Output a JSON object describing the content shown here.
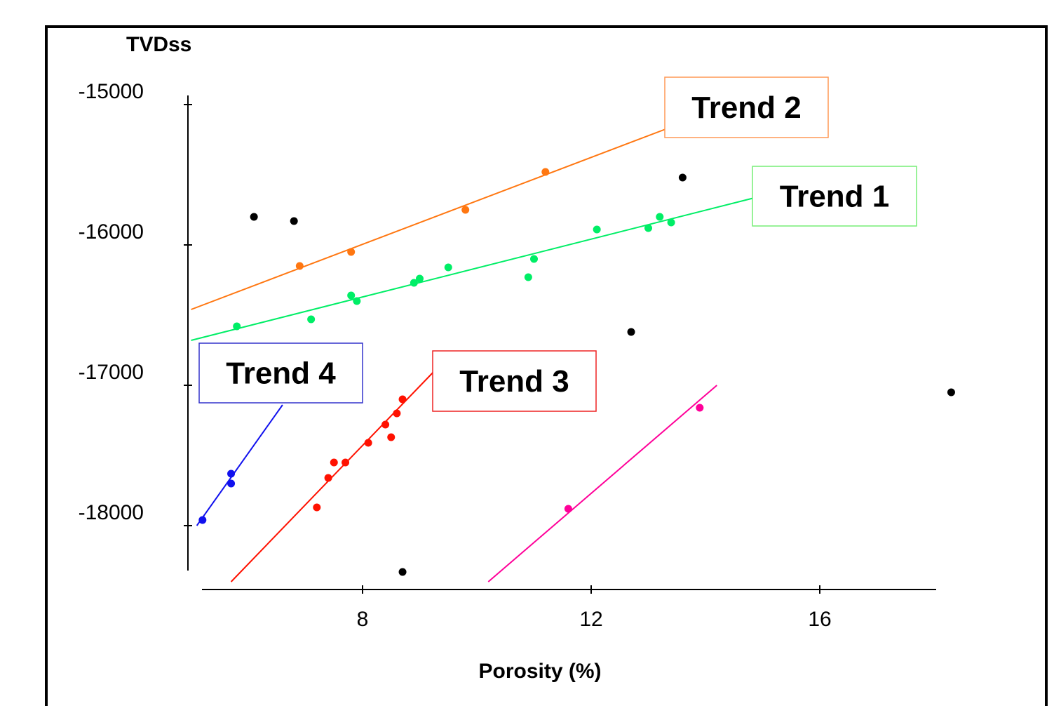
{
  "chart_data": {
    "type": "scatter",
    "xlabel": "Porosity (%)",
    "ylabel": "TVDss",
    "x_ticks": [
      8,
      12,
      16
    ],
    "y_ticks": [
      -15000,
      -16000,
      -17000,
      -18000
    ],
    "xlim": [
      5.0,
      18.5
    ],
    "ylim": [
      -18320,
      -14920
    ],
    "grid": false,
    "series": [
      {
        "name": "Trend 1",
        "color": "#00ee66",
        "box_color": "#77ee77",
        "points": [
          [
            5.8,
            -16580
          ],
          [
            7.1,
            -16530
          ],
          [
            7.8,
            -16360
          ],
          [
            7.9,
            -16400
          ],
          [
            8.9,
            -16270
          ],
          [
            9.0,
            -16240
          ],
          [
            9.5,
            -16160
          ],
          [
            10.9,
            -16230
          ],
          [
            11.0,
            -16100
          ],
          [
            12.1,
            -15890
          ],
          [
            13.0,
            -15880
          ],
          [
            13.2,
            -15800
          ],
          [
            13.4,
            -15840
          ]
        ],
        "line": [
          [
            5.0,
            -16680
          ],
          [
            14.9,
            -15660
          ]
        ]
      },
      {
        "name": "Trend 2",
        "color": "#ff7711",
        "box_color": "#ff9955",
        "points": [
          [
            6.9,
            -16150
          ],
          [
            7.8,
            -16050
          ],
          [
            9.8,
            -15750
          ],
          [
            11.2,
            -15480
          ]
        ],
        "line": [
          [
            5.0,
            -16460
          ],
          [
            13.4,
            -15160
          ]
        ]
      },
      {
        "name": "Trend 3",
        "color": "#ff1100",
        "box_color": "#ee2222",
        "points": [
          [
            7.2,
            -17870
          ],
          [
            7.4,
            -17660
          ],
          [
            7.5,
            -17550
          ],
          [
            7.7,
            -17550
          ],
          [
            8.1,
            -17410
          ],
          [
            8.4,
            -17280
          ],
          [
            8.5,
            -17370
          ],
          [
            8.6,
            -17200
          ],
          [
            8.7,
            -17100
          ]
        ],
        "line": [
          [
            5.7,
            -18400
          ],
          [
            9.3,
            -16880
          ]
        ]
      },
      {
        "name": "Trend 4",
        "color": "#1111ee",
        "box_color": "#3333cc",
        "points": [
          [
            5.2,
            -17960
          ],
          [
            5.7,
            -17630
          ],
          [
            5.7,
            -17700
          ]
        ],
        "line": [
          [
            5.1,
            -18000
          ],
          [
            6.6,
            -17140
          ]
        ]
      },
      {
        "name": "",
        "color": "#ff0099",
        "points": [
          [
            11.6,
            -17880
          ],
          [
            13.9,
            -17160
          ]
        ],
        "line": [
          [
            10.2,
            -18400
          ],
          [
            14.2,
            -17000
          ]
        ]
      },
      {
        "name": "",
        "color": "#000000",
        "points": [
          [
            6.1,
            -15800
          ],
          [
            6.8,
            -15830
          ],
          [
            12.7,
            -16620
          ],
          [
            13.6,
            -15520
          ],
          [
            18.3,
            -17050
          ],
          [
            8.7,
            -18330
          ]
        ]
      }
    ]
  }
}
